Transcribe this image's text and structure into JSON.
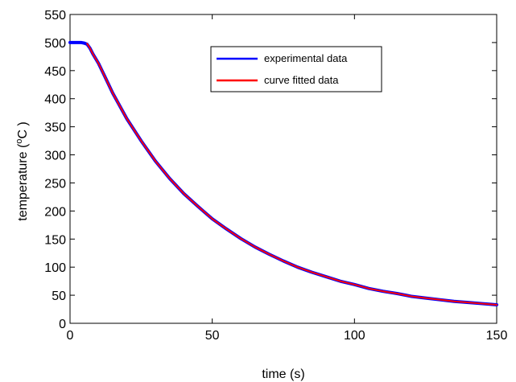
{
  "chart_data": {
    "type": "line",
    "title": "",
    "xlabel": "time (s)",
    "ylabel_parts": {
      "before": "temperature (",
      "sup": "o",
      "after": "C )"
    },
    "xlim": [
      0,
      150
    ],
    "ylim": [
      0,
      550
    ],
    "xticks": [
      0,
      50,
      100,
      150
    ],
    "yticks": [
      0,
      50,
      100,
      150,
      200,
      250,
      300,
      350,
      400,
      450,
      500,
      550
    ],
    "grid": false,
    "legend_position": "top-center",
    "series": [
      {
        "name": "experimental data",
        "color": "#0000ff",
        "x": [
          0,
          2,
          4,
          5,
          6,
          7,
          8,
          10,
          12,
          15,
          20,
          25,
          30,
          35,
          40,
          45,
          50,
          55,
          60,
          65,
          70,
          75,
          80,
          85,
          90,
          95,
          100,
          105,
          110,
          115,
          120,
          125,
          130,
          135,
          140,
          145,
          150
        ],
        "y": [
          500,
          500,
          500,
          499,
          497,
          490,
          480,
          463,
          442,
          410,
          364,
          325,
          289,
          258,
          231,
          208,
          186,
          168,
          151,
          136,
          123,
          111,
          100,
          91,
          83,
          75,
          69,
          62,
          57,
          53,
          48,
          45,
          42,
          39,
          37,
          35,
          33
        ]
      },
      {
        "name": "curve fitted data",
        "color": "#ff0000",
        "x": [
          6,
          7,
          8,
          10,
          12,
          15,
          20,
          25,
          30,
          35,
          40,
          45,
          50,
          55,
          60,
          65,
          70,
          75,
          80,
          85,
          90,
          95,
          100,
          105,
          110,
          115,
          120,
          125,
          130,
          135,
          140,
          145,
          150
        ],
        "y": [
          498,
          490,
          480,
          463,
          442,
          410,
          364,
          325,
          289,
          258,
          231,
          208,
          186,
          168,
          151,
          136,
          123,
          111,
          100,
          91,
          83,
          75,
          69,
          62,
          57,
          53,
          48,
          45,
          42,
          39,
          37,
          35,
          33
        ]
      }
    ]
  }
}
